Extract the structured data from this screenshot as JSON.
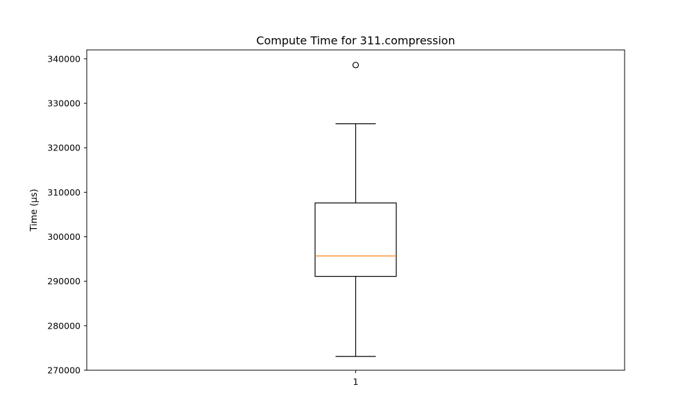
{
  "chart_data": {
    "type": "box",
    "title": "Compute Time for 311.compression",
    "xlabel": "",
    "ylabel": "Time (µs)",
    "ylim": [
      270000,
      342000
    ],
    "y_ticks": [
      270000,
      280000,
      290000,
      300000,
      310000,
      320000,
      330000,
      340000
    ],
    "y_tick_labels": [
      "270000",
      "280000",
      "290000",
      "300000",
      "310000",
      "320000",
      "330000",
      "340000"
    ],
    "categories": [
      "1"
    ],
    "boxes": [
      {
        "category": "1",
        "whisker_low": 273100,
        "q1": 291100,
        "median": 295700,
        "q3": 307600,
        "whisker_high": 325400,
        "outliers": [
          338600
        ]
      }
    ],
    "grid": false,
    "colors": {
      "box": "#000000",
      "median": "#ff7f0e",
      "outlier": "#000000"
    }
  }
}
